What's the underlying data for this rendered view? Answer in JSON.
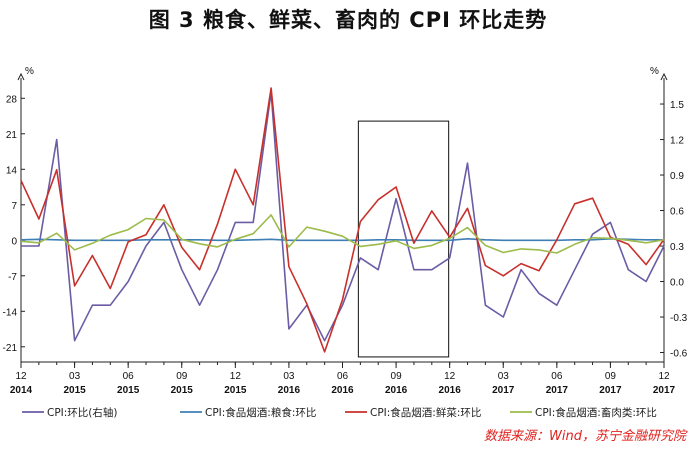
{
  "page": {
    "title": "图 3   粮食、鲜菜、畜肉的 CPI 环比走势",
    "source": "数据来源：Wind，苏宁金融研究院"
  },
  "chart_data": {
    "type": "line",
    "left_axis": {
      "unit": "%",
      "min": -24,
      "max": 32,
      "ticks": [
        28,
        21,
        14,
        7,
        0,
        -7,
        -14,
        -21
      ]
    },
    "right_axis": {
      "unit": "%",
      "min": -0.68,
      "max": 1.72,
      "ticks": [
        1.5,
        1.2,
        0.9,
        0.6,
        0.3,
        0.0,
        -0.3,
        -0.6
      ]
    },
    "x_ticks": [
      {
        "index": 0,
        "month": "12",
        "year": "2014"
      },
      {
        "index": 3,
        "month": "03",
        "year": "2015"
      },
      {
        "index": 6,
        "month": "06",
        "year": "2015"
      },
      {
        "index": 9,
        "month": "09",
        "year": "2015"
      },
      {
        "index": 12,
        "month": "12",
        "year": "2015"
      },
      {
        "index": 15,
        "month": "03",
        "year": "2016"
      },
      {
        "index": 18,
        "month": "06",
        "year": "2016"
      },
      {
        "index": 21,
        "month": "09",
        "year": "2016"
      },
      {
        "index": 24,
        "month": "12",
        "year": "2016"
      },
      {
        "index": 27,
        "month": "03",
        "year": "2017"
      },
      {
        "index": 30,
        "month": "06",
        "year": "2017"
      },
      {
        "index": 33,
        "month": "09",
        "year": "2017"
      },
      {
        "index": 36,
        "month": "12",
        "year": "2017"
      }
    ],
    "x": [
      "2014-12",
      "2015-01",
      "2015-02",
      "2015-03",
      "2015-04",
      "2015-05",
      "2015-06",
      "2015-07",
      "2015-08",
      "2015-09",
      "2015-10",
      "2015-11",
      "2015-12",
      "2016-01",
      "2016-02",
      "2016-03",
      "2016-04",
      "2016-05",
      "2016-06",
      "2016-07",
      "2016-08",
      "2016-09",
      "2016-10",
      "2016-11",
      "2016-12",
      "2017-01",
      "2017-02",
      "2017-03",
      "2017-04",
      "2017-05",
      "2017-06",
      "2017-07",
      "2017-08",
      "2017-09",
      "2017-10",
      "2017-11",
      "2017-12"
    ],
    "series": [
      {
        "name": "CPI:环比(右轴)",
        "axis": "right",
        "color": "#6b5ca5",
        "values": [
          0.3,
          0.3,
          1.2,
          -0.5,
          -0.2,
          -0.2,
          0.0,
          0.3,
          0.5,
          0.1,
          -0.2,
          0.1,
          0.5,
          0.5,
          1.6,
          -0.4,
          -0.2,
          -0.5,
          -0.2,
          0.2,
          0.1,
          0.7,
          0.1,
          0.1,
          0.2,
          1.0,
          -0.2,
          -0.3,
          0.1,
          -0.1,
          -0.2,
          0.1,
          0.4,
          0.5,
          0.1,
          0.0,
          0.3
        ]
      },
      {
        "name": "CPI:食品烟酒:粮食:环比",
        "axis": "left",
        "color": "#3f7fb6",
        "values": [
          0.1,
          0.2,
          0.1,
          0.0,
          0.0,
          0.0,
          0.0,
          0.1,
          0.1,
          0.1,
          0.1,
          0.0,
          0.0,
          0.1,
          0.2,
          0.0,
          0.0,
          0.0,
          0.0,
          0.0,
          0.1,
          0.1,
          0.0,
          0.0,
          0.0,
          0.3,
          0.1,
          0.0,
          0.0,
          0.0,
          0.0,
          0.1,
          0.1,
          0.3,
          0.2,
          0.1,
          0.1
        ]
      },
      {
        "name": "CPI:食品烟酒:鲜菜:环比",
        "axis": "left",
        "color": "#c8302c",
        "values": [
          11.8,
          4.2,
          13.9,
          -9.0,
          -3.0,
          -9.5,
          -0.3,
          1.1,
          7.0,
          -1.4,
          -5.8,
          3.2,
          14.0,
          7.0,
          30.0,
          -5.2,
          -12.5,
          -22.0,
          -11.7,
          3.7,
          8.0,
          10.5,
          -0.6,
          5.8,
          0.6,
          6.3,
          -5.0,
          -7.0,
          -4.6,
          -6.0,
          0.1,
          7.2,
          8.3,
          0.6,
          -0.8,
          -4.8,
          0.2
        ]
      },
      {
        "name": "CPI:食品烟酒:畜肉类:环比",
        "axis": "left",
        "color": "#9cbb4a",
        "values": [
          -0.2,
          -0.5,
          1.4,
          -1.9,
          -0.6,
          1.0,
          2.1,
          4.3,
          4.0,
          0.2,
          -0.7,
          -1.3,
          0.2,
          1.3,
          5.0,
          -1.3,
          2.6,
          1.8,
          0.8,
          -1.2,
          -0.8,
          -0.1,
          -1.6,
          -1.0,
          0.4,
          2.5,
          -1.0,
          -2.4,
          -1.7,
          -1.9,
          -2.5,
          -0.8,
          0.5,
          0.4,
          0.0,
          -0.5,
          0.1
        ]
      }
    ],
    "highlight_box": {
      "from_index": 19,
      "to_index": 24,
      "y_top": 23.5,
      "y_bottom": -23
    },
    "legend": {
      "placement": "bottom"
    },
    "grid": false
  }
}
